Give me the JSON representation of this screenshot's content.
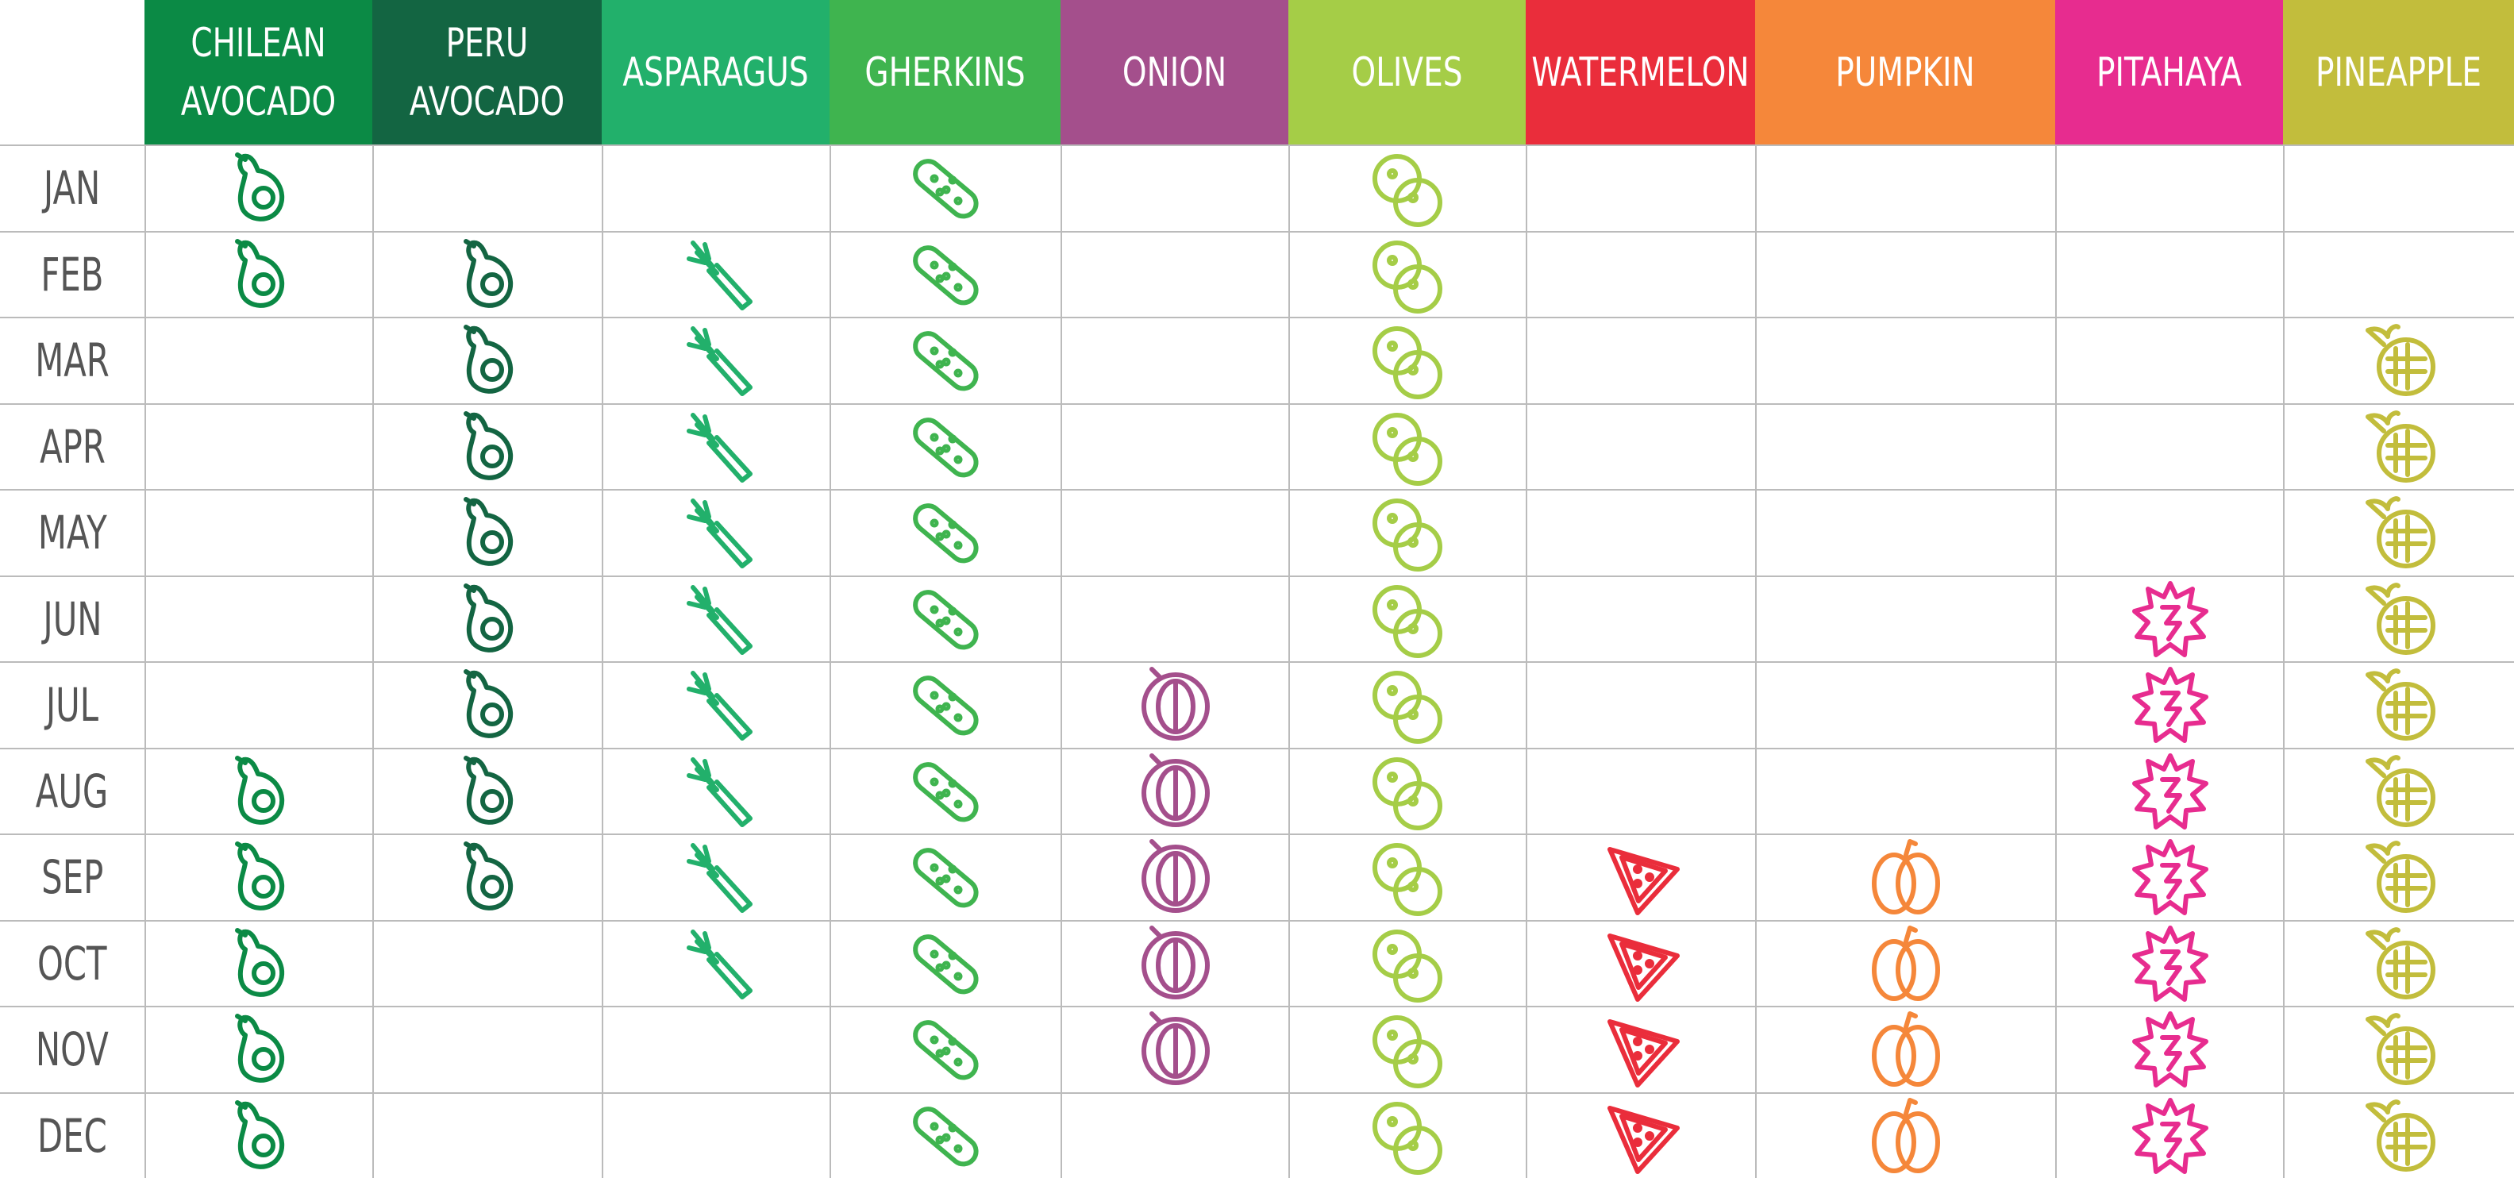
{
  "table": {
    "columns": [
      {
        "name": "CHILEAN AVOCADO",
        "color": "#0b8a45"
      },
      {
        "name": "PERU AVOCADO",
        "color": "#136542"
      },
      {
        "name": "ASPARAGUS",
        "color": "#22b06b"
      },
      {
        "name": "GHERKINS",
        "color": "#3fb44f"
      },
      {
        "name": "ONION",
        "color": "#a44f8c"
      },
      {
        "name": "OLIVES",
        "color": "#a5cd47"
      },
      {
        "name": "WATERMELON",
        "color": "#ea2d3b"
      },
      {
        "name": "PUMPKIN",
        "color": "#f5873a"
      },
      {
        "name": "PITAHAYA",
        "color": "#e72c8f"
      },
      {
        "name": "PINEAPPLE",
        "color": "#c2bd3c"
      }
    ],
    "rows": [
      {
        "month": "JAN",
        "available": [
          true,
          false,
          false,
          true,
          false,
          true,
          false,
          false,
          false,
          false
        ]
      },
      {
        "month": "FEB",
        "available": [
          true,
          true,
          true,
          true,
          false,
          true,
          false,
          false,
          false,
          false
        ]
      },
      {
        "month": "MAR",
        "available": [
          false,
          true,
          true,
          true,
          false,
          true,
          false,
          false,
          false,
          true
        ]
      },
      {
        "month": "APR",
        "available": [
          false,
          true,
          true,
          true,
          false,
          true,
          false,
          false,
          false,
          true
        ]
      },
      {
        "month": "MAY",
        "available": [
          false,
          true,
          true,
          true,
          false,
          true,
          false,
          false,
          false,
          true
        ]
      },
      {
        "month": "JUN",
        "available": [
          false,
          true,
          true,
          true,
          false,
          true,
          false,
          false,
          true,
          true
        ]
      },
      {
        "month": "JUL",
        "available": [
          false,
          true,
          true,
          true,
          true,
          true,
          false,
          false,
          true,
          true
        ]
      },
      {
        "month": "AUG",
        "available": [
          true,
          true,
          true,
          true,
          true,
          true,
          false,
          false,
          true,
          true
        ]
      },
      {
        "month": "SEP",
        "available": [
          true,
          true,
          true,
          true,
          true,
          true,
          true,
          true,
          true,
          true
        ]
      },
      {
        "month": "OCT",
        "available": [
          true,
          false,
          true,
          true,
          true,
          true,
          true,
          true,
          true,
          true
        ]
      },
      {
        "month": "NOV",
        "available": [
          true,
          false,
          false,
          true,
          true,
          true,
          true,
          true,
          true,
          true
        ]
      },
      {
        "month": "DEC",
        "available": [
          true,
          false,
          false,
          true,
          false,
          true,
          true,
          true,
          true,
          true
        ]
      }
    ]
  }
}
